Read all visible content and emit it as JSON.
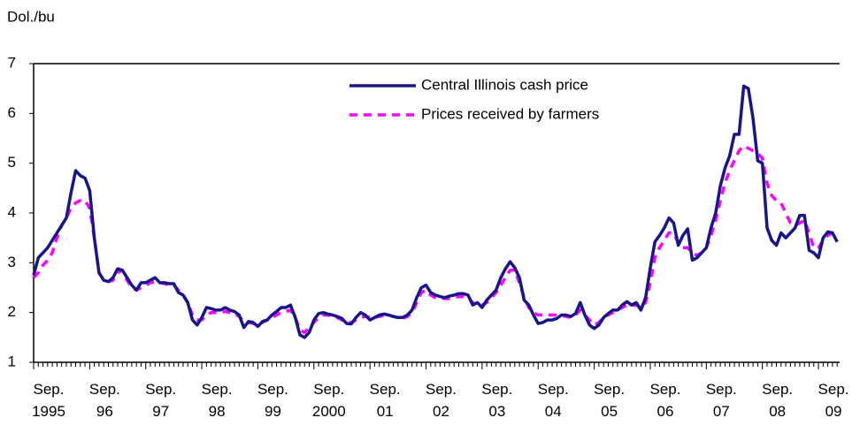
{
  "chart_data": {
    "type": "line",
    "y_label": "Dol./bu",
    "categories": [
      "Sep.\n1995",
      null,
      null,
      null,
      null,
      null,
      null,
      null,
      null,
      null,
      null,
      null,
      "Sep.\n96",
      null,
      null,
      null,
      null,
      null,
      null,
      null,
      null,
      null,
      null,
      null,
      "Sep.\n97",
      null,
      null,
      null,
      null,
      null,
      null,
      null,
      null,
      null,
      null,
      null,
      "Sep.\n98",
      null,
      null,
      null,
      null,
      null,
      null,
      null,
      null,
      null,
      null,
      null,
      "Sep.\n99",
      null,
      null,
      null,
      null,
      null,
      null,
      null,
      null,
      null,
      null,
      null,
      "Sep.\n2000",
      null,
      null,
      null,
      null,
      null,
      null,
      null,
      null,
      null,
      null,
      null,
      "Sep.\n01",
      null,
      null,
      null,
      null,
      null,
      null,
      null,
      null,
      null,
      null,
      null,
      "Sep.\n02",
      null,
      null,
      null,
      null,
      null,
      null,
      null,
      null,
      null,
      null,
      null,
      "Sep.\n03",
      null,
      null,
      null,
      null,
      null,
      null,
      null,
      null,
      null,
      null,
      null,
      "Sep.\n04",
      null,
      null,
      null,
      null,
      null,
      null,
      null,
      null,
      null,
      null,
      null,
      "Sep.\n05",
      null,
      null,
      null,
      null,
      null,
      null,
      null,
      null,
      null,
      null,
      null,
      "Sep.\n06",
      null,
      null,
      null,
      null,
      null,
      null,
      null,
      null,
      null,
      null,
      null,
      "Sep.\n07",
      null,
      null,
      null,
      null,
      null,
      null,
      null,
      null,
      null,
      null,
      null,
      "Sep.\n08",
      null,
      null,
      null,
      null,
      null,
      null,
      null,
      null,
      null,
      null,
      null,
      "Sep.\n09",
      null,
      null,
      null,
      null
    ],
    "series": [
      {
        "name": "Central Illinois cash price",
        "color": "#16168a",
        "dash": false,
        "values": [
          2.75,
          3.1,
          3.2,
          3.3,
          3.45,
          3.6,
          3.75,
          3.9,
          4.4,
          4.85,
          4.75,
          4.7,
          4.45,
          3.5,
          2.8,
          2.65,
          2.62,
          2.7,
          2.88,
          2.85,
          2.7,
          2.55,
          2.45,
          2.6,
          2.6,
          2.65,
          2.7,
          2.6,
          2.6,
          2.58,
          2.58,
          2.4,
          2.35,
          2.2,
          1.85,
          1.75,
          1.9,
          2.1,
          2.08,
          2.05,
          2.05,
          2.1,
          2.05,
          2.02,
          1.95,
          1.7,
          1.82,
          1.8,
          1.72,
          1.82,
          1.85,
          1.95,
          2.02,
          2.1,
          2.1,
          2.15,
          1.9,
          1.55,
          1.5,
          1.6,
          1.85,
          1.98,
          2.0,
          1.97,
          1.95,
          1.92,
          1.88,
          1.78,
          1.77,
          1.9,
          2.0,
          1.95,
          1.85,
          1.9,
          1.95,
          1.97,
          1.95,
          1.92,
          1.9,
          1.9,
          1.95,
          2.05,
          2.3,
          2.5,
          2.55,
          2.4,
          2.35,
          2.32,
          2.3,
          2.33,
          2.35,
          2.38,
          2.38,
          2.35,
          2.15,
          2.2,
          2.1,
          2.25,
          2.35,
          2.45,
          2.7,
          2.88,
          3.02,
          2.9,
          2.7,
          2.25,
          2.15,
          1.95,
          1.78,
          1.8,
          1.85,
          1.85,
          1.88,
          1.95,
          1.95,
          1.92,
          1.98,
          2.2,
          1.95,
          1.75,
          1.68,
          1.75,
          1.9,
          1.98,
          2.05,
          2.05,
          2.15,
          2.22,
          2.15,
          2.2,
          2.05,
          2.3,
          2.9,
          3.42,
          3.55,
          3.7,
          3.9,
          3.8,
          3.35,
          3.55,
          3.68,
          3.05,
          3.1,
          3.2,
          3.3,
          3.7,
          4.0,
          4.55,
          4.9,
          5.15,
          5.58,
          5.58,
          6.55,
          6.5,
          5.9,
          5.05,
          5.0,
          3.7,
          3.45,
          3.35,
          3.6,
          3.5,
          3.6,
          3.7,
          3.95,
          3.95,
          3.25,
          3.2,
          3.1,
          3.5,
          3.62,
          3.6,
          3.42
        ]
      },
      {
        "name": "Prices received by farmers",
        "color": "#ff00ff",
        "dash": true,
        "values": [
          2.7,
          2.8,
          2.95,
          3.05,
          3.2,
          3.5,
          3.75,
          3.9,
          4.1,
          4.2,
          4.25,
          4.25,
          4.1,
          3.5,
          2.8,
          2.65,
          2.62,
          2.65,
          2.8,
          2.85,
          2.65,
          2.5,
          2.45,
          2.5,
          2.55,
          2.6,
          2.62,
          2.6,
          2.58,
          2.55,
          2.55,
          2.45,
          2.35,
          2.2,
          1.95,
          1.85,
          1.85,
          1.95,
          2.0,
          2.0,
          2.0,
          2.02,
          2.0,
          1.98,
          1.92,
          1.82,
          1.8,
          1.78,
          1.75,
          1.8,
          1.85,
          1.9,
          1.95,
          2.0,
          2.02,
          2.05,
          1.9,
          1.65,
          1.6,
          1.7,
          1.8,
          1.9,
          1.95,
          1.95,
          1.92,
          1.9,
          1.85,
          1.8,
          1.8,
          1.85,
          1.9,
          1.92,
          1.9,
          1.9,
          1.92,
          1.95,
          1.95,
          1.92,
          1.9,
          1.88,
          1.92,
          2.0,
          2.2,
          2.4,
          2.45,
          2.35,
          2.3,
          2.3,
          2.28,
          2.28,
          2.3,
          2.32,
          2.32,
          2.3,
          2.2,
          2.15,
          2.15,
          2.2,
          2.3,
          2.4,
          2.55,
          2.7,
          2.85,
          2.85,
          2.6,
          2.3,
          2.1,
          2.0,
          1.95,
          1.95,
          1.95,
          1.95,
          1.95,
          1.95,
          1.92,
          1.9,
          1.95,
          2.05,
          1.95,
          1.85,
          1.75,
          1.8,
          1.9,
          1.95,
          2.0,
          2.05,
          2.1,
          2.15,
          2.15,
          2.15,
          2.1,
          2.2,
          2.6,
          3.1,
          3.3,
          3.45,
          3.6,
          3.6,
          3.4,
          3.3,
          3.3,
          3.2,
          3.15,
          3.2,
          3.3,
          3.55,
          3.85,
          4.25,
          4.6,
          4.85,
          5.05,
          5.25,
          5.35,
          5.3,
          5.25,
          5.2,
          5.1,
          4.6,
          4.35,
          4.25,
          4.2,
          4.0,
          3.8,
          3.75,
          3.8,
          3.85,
          3.6,
          3.3,
          3.3,
          3.45,
          3.55,
          3.6,
          3.55
        ]
      }
    ],
    "ylim": [
      1,
      7
    ],
    "yticks": [
      1,
      2,
      3,
      4,
      5,
      6,
      7
    ],
    "grid": false
  }
}
